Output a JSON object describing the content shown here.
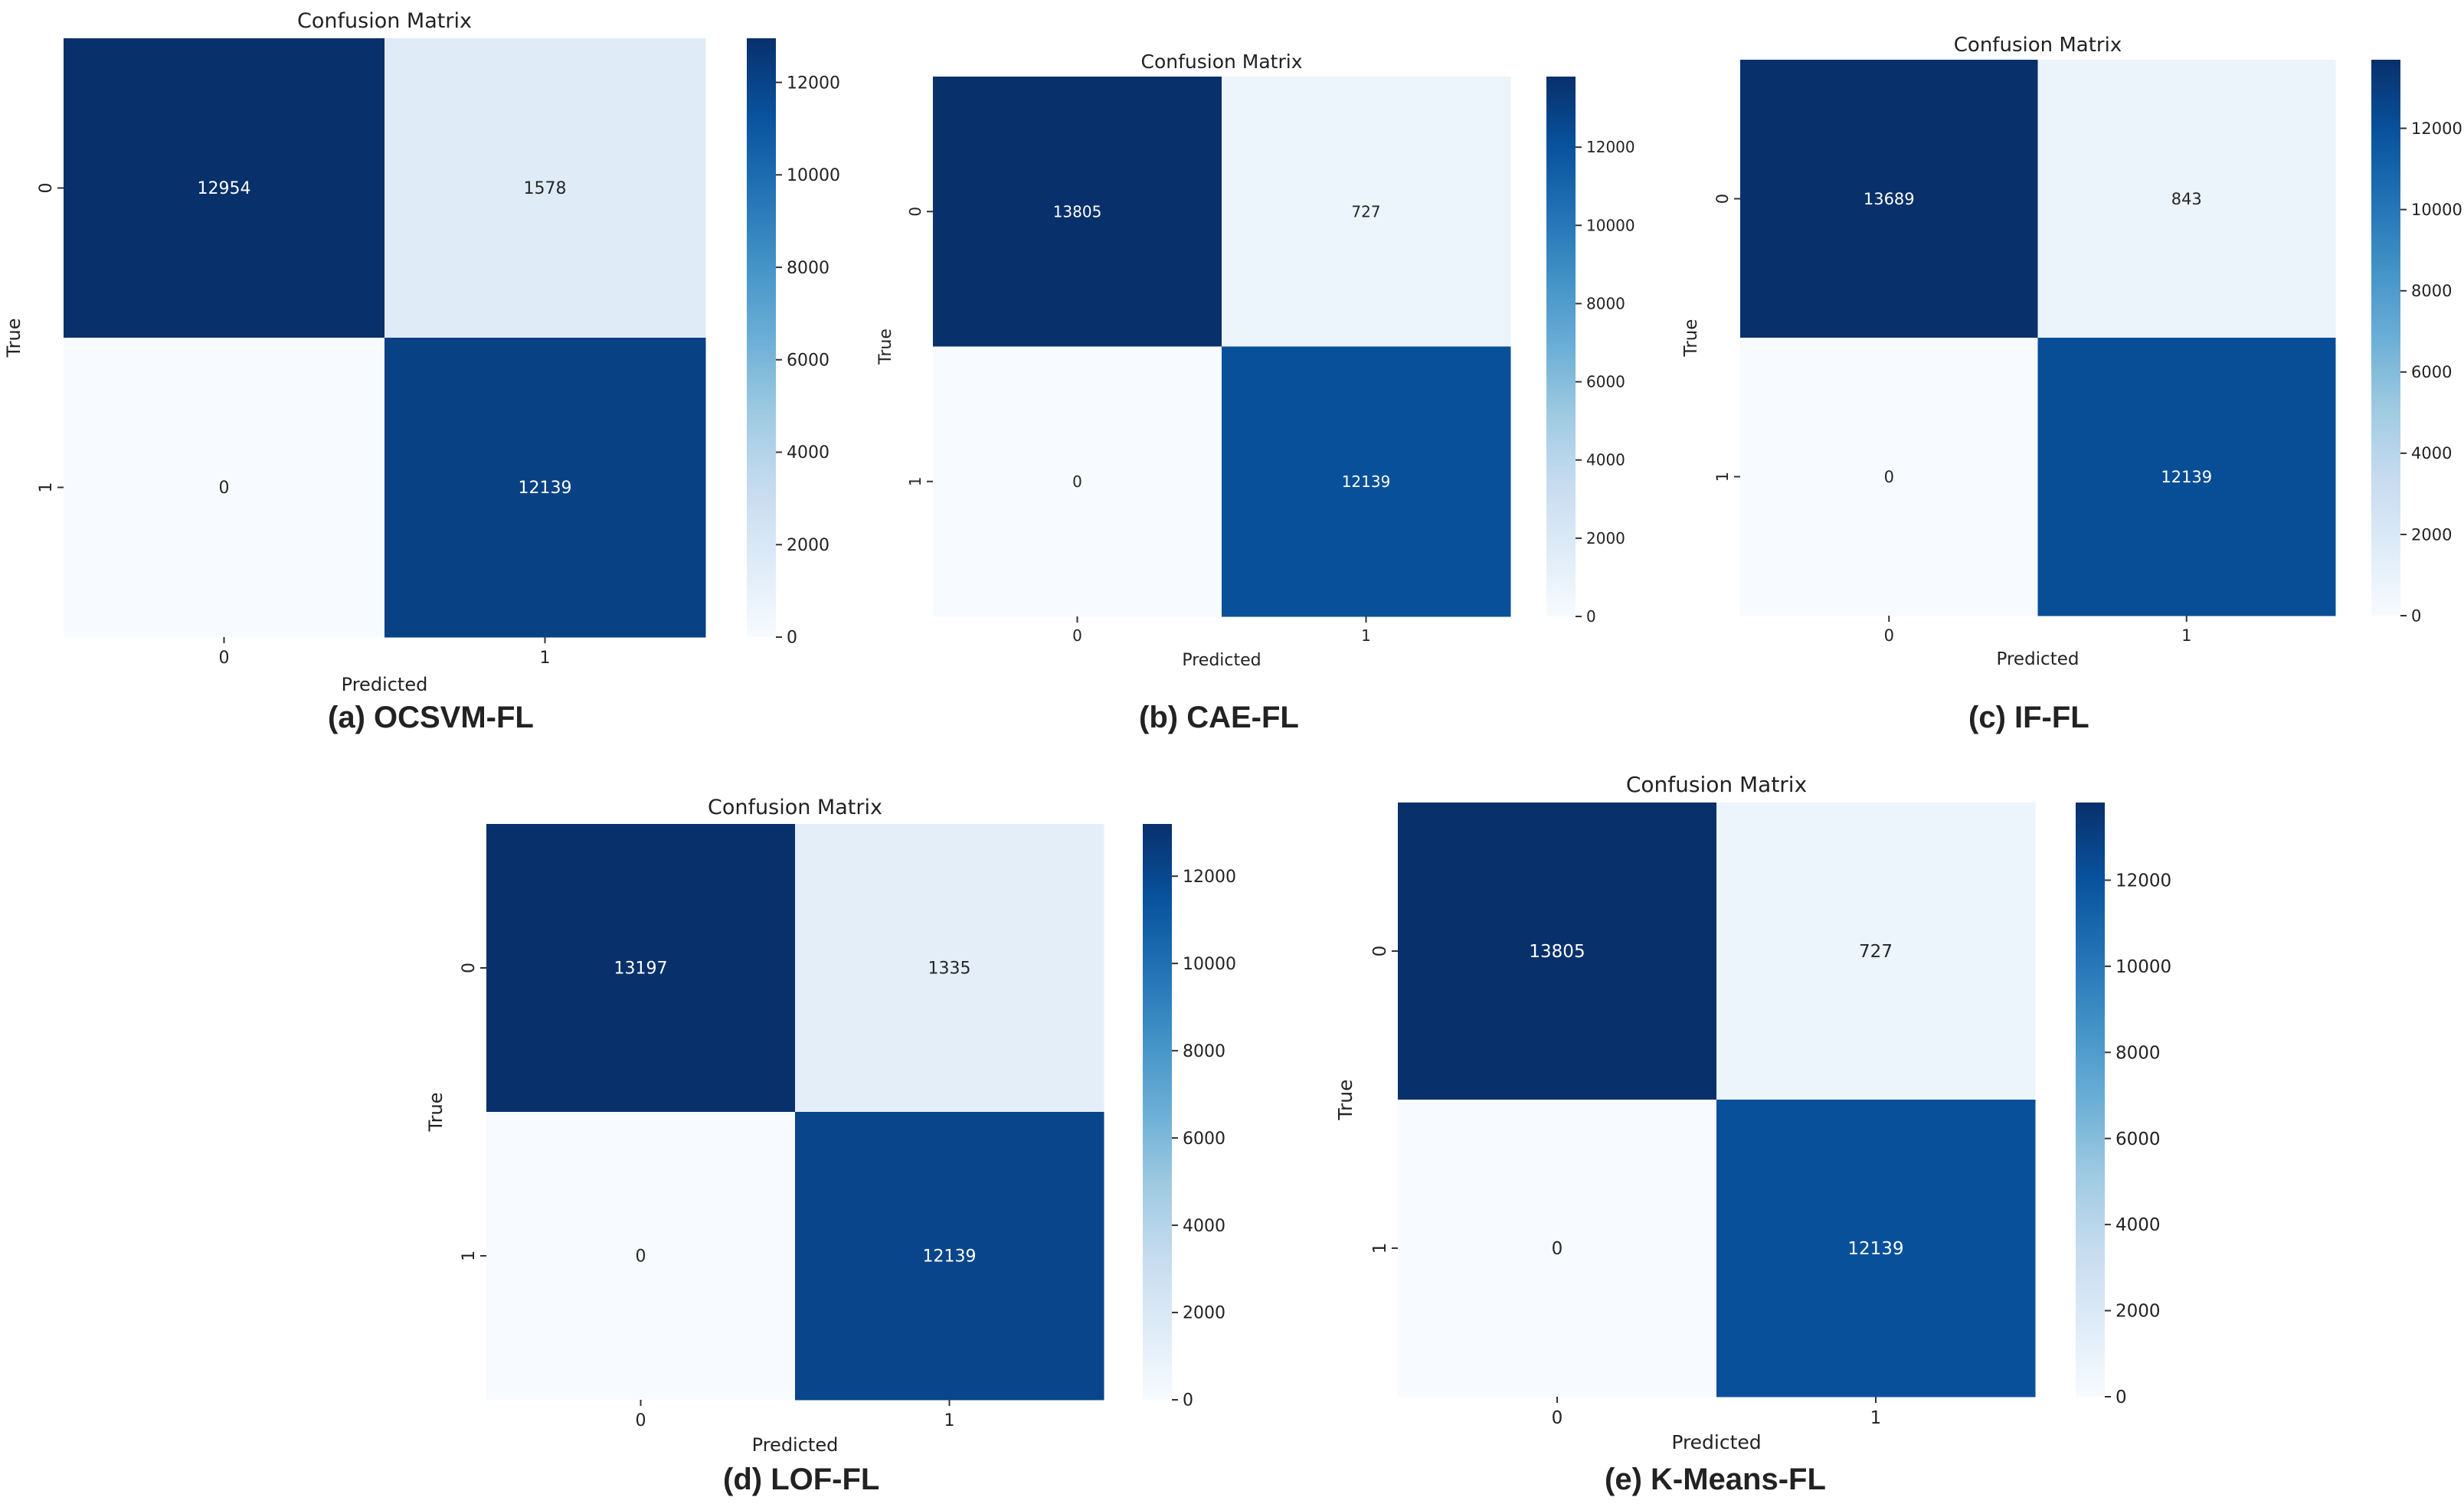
{
  "colors": {
    "low": "#f7fbff",
    "mid_stops": [
      "#f7fbff",
      "#deebf7",
      "#c6dbef",
      "#9ecae1",
      "#6baed6",
      "#4292c6",
      "#2171b5",
      "#08519c",
      "#08306b"
    ],
    "high": "#08306b",
    "text_dark": "#262626",
    "text_light": "#ffffff"
  },
  "chart_data": [
    {
      "type": "heatmap",
      "caption": "(a) OCSVM-FL",
      "title": "Confusion Matrix",
      "xlabel": "Predicted",
      "ylabel": "True",
      "x_categories": [
        "0",
        "1"
      ],
      "y_categories": [
        "0",
        "1"
      ],
      "values": [
        [
          12954,
          1578
        ],
        [
          0,
          12139
        ]
      ],
      "vmin": 0,
      "vmax": 12954,
      "colorbar_ticks": [
        0,
        2000,
        4000,
        6000,
        8000,
        10000,
        12000
      ],
      "colorbar_tick_labels": [
        "0",
        "2000",
        "4000",
        "6000",
        "8000",
        "10000",
        "12000"
      ]
    },
    {
      "type": "heatmap",
      "caption": "(b)  CAE-FL",
      "title": "Confusion Matrix",
      "xlabel": "Predicted",
      "ylabel": "True",
      "x_categories": [
        "0",
        "1"
      ],
      "y_categories": [
        "0",
        "1"
      ],
      "values": [
        [
          13805,
          727
        ],
        [
          0,
          12139
        ]
      ],
      "vmin": 0,
      "vmax": 13805,
      "colorbar_ticks": [
        0,
        2000,
        4000,
        6000,
        8000,
        10000,
        12000
      ],
      "colorbar_tick_labels": [
        "0",
        "2000",
        "4000",
        "6000",
        "8000",
        "10000",
        "12000"
      ]
    },
    {
      "type": "heatmap",
      "caption": "(c) IF-FL",
      "title": "Confusion Matrix",
      "xlabel": "Predicted",
      "ylabel": "True",
      "x_categories": [
        "0",
        "1"
      ],
      "y_categories": [
        "0",
        "1"
      ],
      "values": [
        [
          13689,
          843
        ],
        [
          0,
          12139
        ]
      ],
      "vmin": 0,
      "vmax": 13689,
      "colorbar_ticks": [
        0,
        2000,
        4000,
        6000,
        8000,
        10000,
        12000
      ],
      "colorbar_tick_labels": [
        "0",
        "2000",
        "4000",
        "6000",
        "8000",
        "10000",
        "12000"
      ]
    },
    {
      "type": "heatmap",
      "caption": "(d) LOF-FL",
      "title": "Confusion Matrix",
      "xlabel": "Predicted",
      "ylabel": "True",
      "x_categories": [
        "0",
        "1"
      ],
      "y_categories": [
        "0",
        "1"
      ],
      "values": [
        [
          13197,
          1335
        ],
        [
          0,
          12139
        ]
      ],
      "vmin": 0,
      "vmax": 13197,
      "colorbar_ticks": [
        0,
        2000,
        4000,
        6000,
        8000,
        10000,
        12000
      ],
      "colorbar_tick_labels": [
        "0",
        "2000",
        "4000",
        "6000",
        "8000",
        "10000",
        "12000"
      ]
    },
    {
      "type": "heatmap",
      "caption": "(e)  K-Means-FL",
      "title": "Confusion Matrix",
      "xlabel": "Predicted",
      "ylabel": "True",
      "x_categories": [
        "0",
        "1"
      ],
      "y_categories": [
        "0",
        "1"
      ],
      "values": [
        [
          13805,
          727
        ],
        [
          0,
          12139
        ]
      ],
      "vmin": 0,
      "vmax": 13805,
      "colorbar_ticks": [
        0,
        2000,
        4000,
        6000,
        8000,
        10000,
        12000
      ],
      "colorbar_tick_labels": [
        "0",
        "2000",
        "4000",
        "6000",
        "8000",
        "10000",
        "12000"
      ]
    }
  ]
}
